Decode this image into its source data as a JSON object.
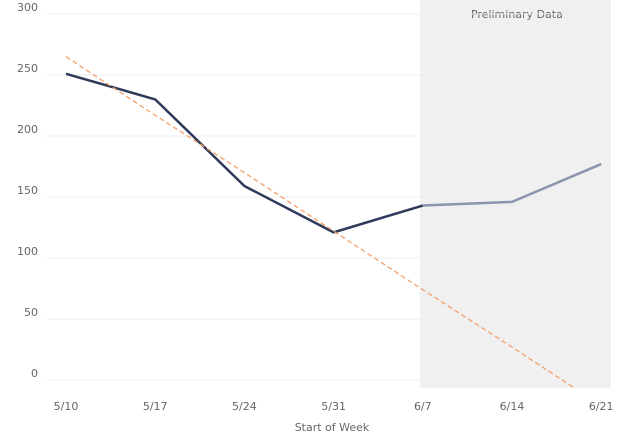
{
  "chart_data": {
    "type": "line",
    "x_label": "Start of Week",
    "categories": [
      "5/10",
      "5/17",
      "5/24",
      "5/31",
      "6/7",
      "6/14",
      "6/21"
    ],
    "series": [
      {
        "color": "#2d3a5a",
        "values": [
          251,
          230,
          159,
          121,
          143,
          146,
          177
        ]
      },
      {
        "color": "#f4a06a",
        "dashed": true,
        "values": [
          265,
          217,
          170,
          122,
          74,
          27,
          -21
        ]
      }
    ],
    "shaded_region": {
      "label": "Preliminary Data",
      "start": 4,
      "color": "#f0f0f0",
      "line_color": "#8b96ad"
    },
    "ylim": [
      0,
      300
    ],
    "yticks": [
      0,
      50,
      100,
      150,
      200,
      250,
      300
    ],
    "grid": true
  }
}
